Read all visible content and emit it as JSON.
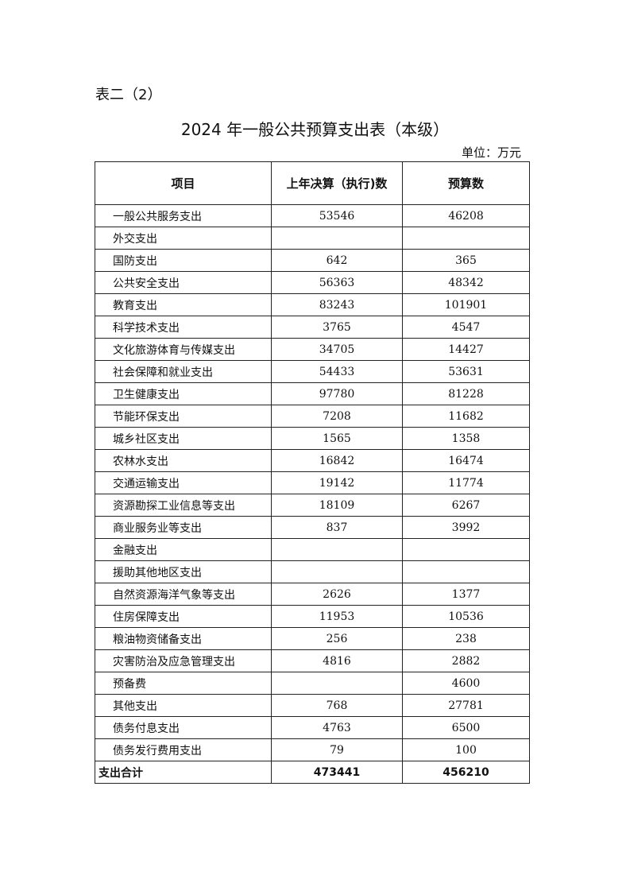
{
  "doc": {
    "label": "表二（2）",
    "title": "2024 年一般公共预算支出表（本级）",
    "unit": "单位：万元"
  },
  "table": {
    "headers": [
      "项目",
      "上年决算（执行)数",
      "预算数"
    ],
    "rows": [
      [
        "一般公共服务支出",
        "53546",
        "46208"
      ],
      [
        "外交支出",
        "",
        ""
      ],
      [
        "国防支出",
        "642",
        "365"
      ],
      [
        "公共安全支出",
        "56363",
        "48342"
      ],
      [
        "教育支出",
        "83243",
        "101901"
      ],
      [
        "科学技术支出",
        "3765",
        "4547"
      ],
      [
        "文化旅游体育与传媒支出",
        "34705",
        "14427"
      ],
      [
        "社会保障和就业支出",
        "54433",
        "53631"
      ],
      [
        "卫生健康支出",
        "97780",
        "81228"
      ],
      [
        "节能环保支出",
        "7208",
        "11682"
      ],
      [
        "城乡社区支出",
        "1565",
        "1358"
      ],
      [
        "农林水支出",
        "16842",
        "16474"
      ],
      [
        "交通运输支出",
        "19142",
        "11774"
      ],
      [
        "资源勘探工业信息等支出",
        "18109",
        "6267"
      ],
      [
        "商业服务业等支出",
        "837",
        "3992"
      ],
      [
        "金融支出",
        "",
        ""
      ],
      [
        "援助其他地区支出",
        "",
        ""
      ],
      [
        "自然资源海洋气象等支出",
        "2626",
        "1377"
      ],
      [
        "住房保障支出",
        "11953",
        "10536"
      ],
      [
        "粮油物资储备支出",
        "256",
        "238"
      ],
      [
        "灾害防治及应急管理支出",
        "4816",
        "2882"
      ],
      [
        "预备费",
        "",
        "4600"
      ],
      [
        "其他支出",
        "768",
        "27781"
      ],
      [
        "债务付息支出",
        "4763",
        "6500"
      ],
      [
        "债务发行费用支出",
        "79",
        "100"
      ]
    ],
    "total": [
      "支出合计",
      "473441",
      "456210"
    ]
  }
}
